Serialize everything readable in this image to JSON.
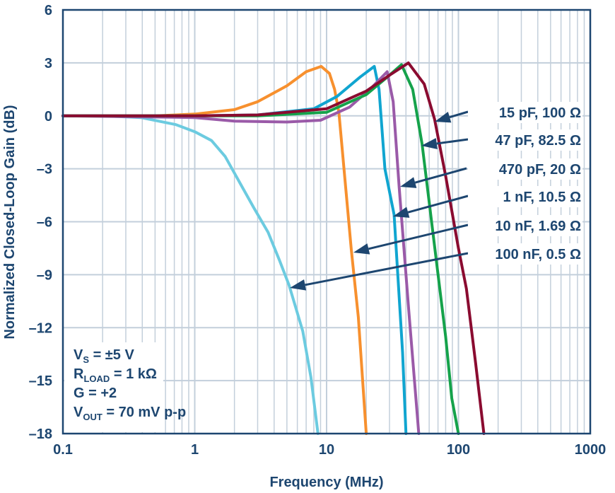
{
  "chart_data": {
    "type": "line",
    "xlabel": "Frequency (MHz)",
    "ylabel": "Normalized Closed-Loop Gain (dB)",
    "x_scale": "log",
    "xlim": [
      0.1,
      1000
    ],
    "ylim": [
      -18,
      6
    ],
    "grid": true,
    "x_ticks": [
      "0.1",
      "1",
      "10",
      "100",
      "1000"
    ],
    "x_tick_values": [
      0.1,
      1,
      10,
      100,
      1000
    ],
    "y_ticks": [
      "6",
      "3",
      "0",
      "–3",
      "–6",
      "–9",
      "–12",
      "–15",
      "–18"
    ],
    "y_tick_values": [
      6,
      3,
      0,
      -3,
      -6,
      -9,
      -12,
      -15,
      -18
    ],
    "conditions": [
      {
        "main": "V",
        "sub": "S",
        "rest": " = ±5 V"
      },
      {
        "main": "R",
        "sub": "LOAD",
        "rest": " = 1 kΩ"
      },
      {
        "main": "G = +2",
        "sub": "",
        "rest": ""
      },
      {
        "main": "V",
        "sub": "OUT",
        "rest": " = 70 mV p-p"
      }
    ],
    "series": [
      {
        "name": "15 pF, 100 Ω",
        "color": "#8a0b30",
        "x": [
          0.1,
          1,
          3,
          10,
          20,
          30,
          41.7,
          55,
          66,
          80,
          100,
          115,
          135,
          156
        ],
        "y": [
          0,
          0,
          0.05,
          0.4,
          1.4,
          2.3,
          3.0,
          1.8,
          -0.2,
          -3.4,
          -7.5,
          -9.8,
          -14,
          -18
        ]
      },
      {
        "name": "47 pF, 82.5 Ω",
        "color": "#15a24b",
        "x": [
          0.1,
          1,
          3,
          10,
          20,
          30,
          37,
          45,
          53,
          66,
          80,
          89,
          100
        ],
        "y": [
          0,
          0,
          0,
          0.2,
          1.2,
          2.3,
          2.9,
          1.5,
          -1.6,
          -7.4,
          -12.5,
          -16,
          -18
        ]
      },
      {
        "name": "470 pF, 20 Ω",
        "color": "#9a5aa8",
        "x": [
          0.1,
          1,
          2,
          5,
          9,
          15,
          22,
          28.8,
          32,
          35.5,
          42,
          50
        ],
        "y": [
          0,
          -0.1,
          -0.3,
          -0.35,
          -0.25,
          0.5,
          1.6,
          2.5,
          0.8,
          -4,
          -11,
          -18
        ]
      },
      {
        "name": "1 nF, 10.5 Ω",
        "color": "#10a5d0",
        "x": [
          0.1,
          1,
          3,
          8,
          12,
          18,
          23,
          25,
          27.7,
          32.5,
          37.7,
          40
        ],
        "y": [
          0,
          0,
          0.05,
          0.4,
          1.1,
          2.2,
          2.8,
          1.5,
          -3,
          -5.6,
          -13.4,
          -18
        ]
      },
      {
        "name": "10 nF, 1.69 Ω",
        "color": "#f7902e",
        "x": [
          0.1,
          0.5,
          1,
          2,
          3,
          5,
          7,
          9.1,
          10.5,
          11.5,
          12.4,
          15.4,
          17.4,
          20
        ],
        "y": [
          0,
          0,
          0.1,
          0.35,
          0.8,
          1.7,
          2.5,
          2.8,
          2.4,
          1.5,
          0.2,
          -7.6,
          -11.4,
          -18
        ]
      },
      {
        "name": "100 nF, 0.5 Ω",
        "color": "#6ccbe0",
        "x": [
          0.1,
          0.2,
          0.39,
          0.72,
          1.0,
          1.34,
          1.7,
          2.2,
          2.8,
          3.6,
          4.4,
          5.2,
          6.6,
          7.6,
          8.6
        ],
        "y": [
          0,
          0,
          -0.1,
          -0.5,
          -0.9,
          -1.4,
          -2.3,
          -3.8,
          -5.2,
          -6.6,
          -8.2,
          -9.6,
          -12.2,
          -14.8,
          -18
        ]
      }
    ]
  }
}
